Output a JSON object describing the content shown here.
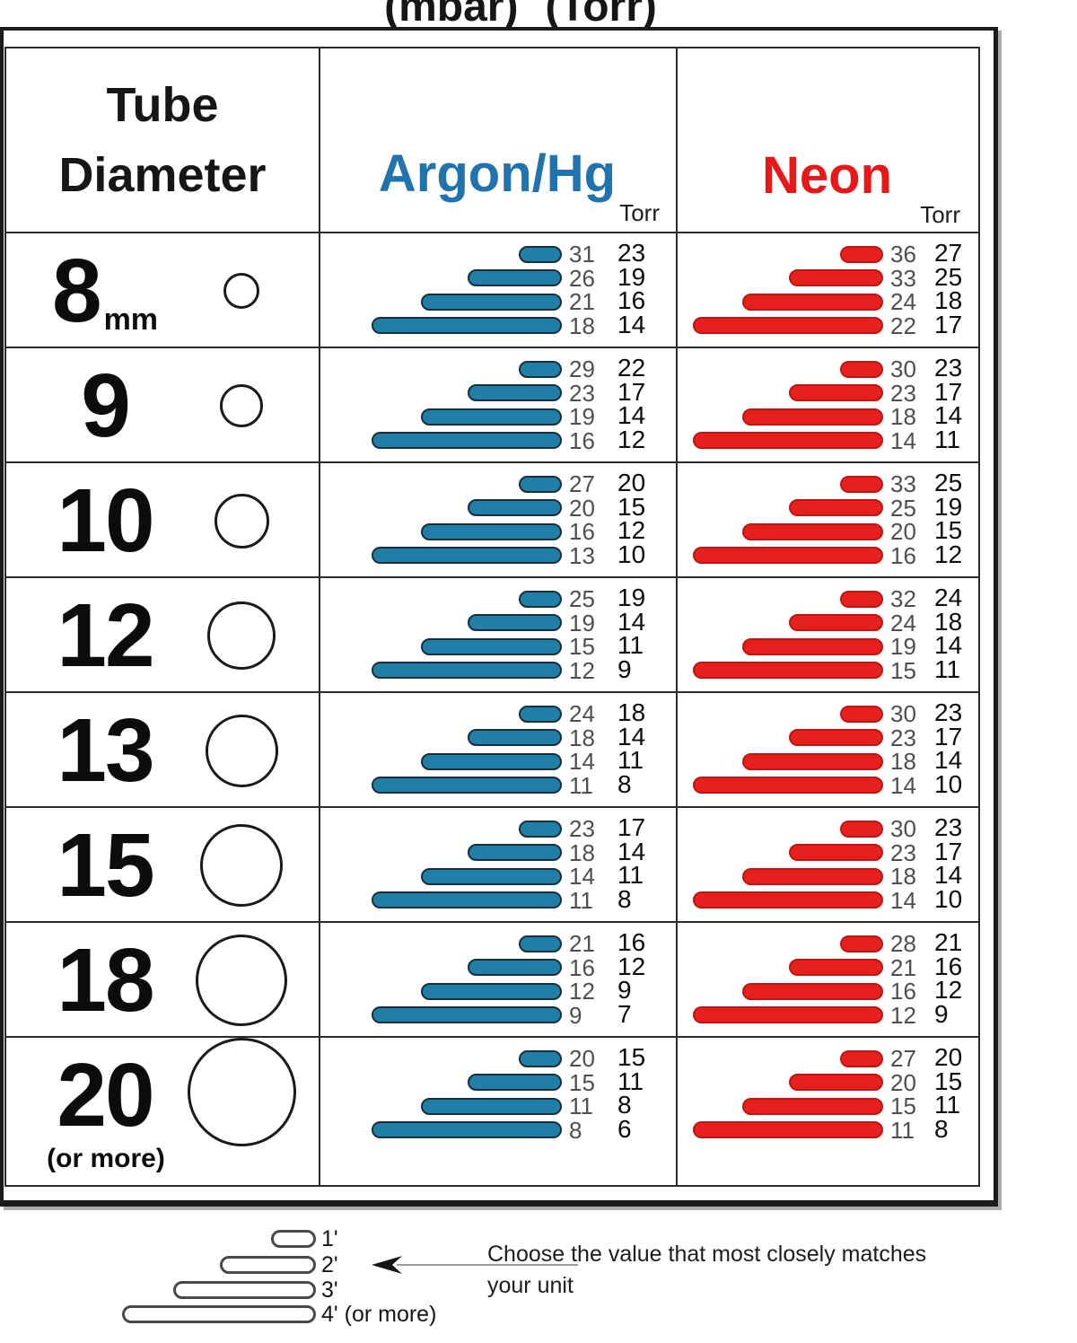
{
  "header": {
    "units_mbar": "(mbar)",
    "units_torr": "(Torr)",
    "col_diameter": "Tube Diameter",
    "col_argon": "Argon/Hg",
    "col_neon": "Neon",
    "torr_sublabel": "Torr"
  },
  "colors": {
    "argon_bar": "#1f7fa6",
    "argon_bar_outline": "#16303d",
    "argon_text": "#2173ad",
    "neon_bar": "#e6201c",
    "neon_bar_outline": "#c01513",
    "neon_text": "#e81818",
    "grid": "#2b2b2b",
    "mbar_number": "#4f4f4f",
    "torr_number": "#0d0d0d"
  },
  "chart_data": {
    "type": "table",
    "title": "(mbar)  (Torr)",
    "columns": [
      "Tube Diameter",
      "Argon/Hg",
      "Neon"
    ],
    "units": [
      "mbar",
      "Torr"
    ],
    "tube_lengths": [
      "1'",
      "2'",
      "3'",
      "4' (or more)"
    ],
    "rows": [
      {
        "diameter": "8",
        "unit": "mm",
        "argon": {
          "mbar": [
            31,
            26,
            21,
            18
          ],
          "torr": [
            23,
            19,
            16,
            14
          ]
        },
        "neon": {
          "mbar": [
            36,
            33,
            24,
            22
          ],
          "torr": [
            27,
            25,
            18,
            17
          ]
        }
      },
      {
        "diameter": "9",
        "argon": {
          "mbar": [
            29,
            23,
            19,
            16
          ],
          "torr": [
            22,
            17,
            14,
            12
          ]
        },
        "neon": {
          "mbar": [
            30,
            23,
            18,
            14
          ],
          "torr": [
            23,
            17,
            14,
            11
          ]
        }
      },
      {
        "diameter": "10",
        "argon": {
          "mbar": [
            27,
            20,
            16,
            13
          ],
          "torr": [
            20,
            15,
            12,
            10
          ]
        },
        "neon": {
          "mbar": [
            33,
            25,
            20,
            16
          ],
          "torr": [
            25,
            19,
            15,
            12
          ]
        }
      },
      {
        "diameter": "12",
        "argon": {
          "mbar": [
            25,
            19,
            15,
            12
          ],
          "torr": [
            19,
            14,
            11,
            9
          ]
        },
        "neon": {
          "mbar": [
            32,
            24,
            19,
            15
          ],
          "torr": [
            24,
            18,
            14,
            11
          ]
        }
      },
      {
        "diameter": "13",
        "argon": {
          "mbar": [
            24,
            18,
            14,
            11
          ],
          "torr": [
            18,
            14,
            11,
            8
          ]
        },
        "neon": {
          "mbar": [
            30,
            23,
            18,
            14
          ],
          "torr": [
            23,
            17,
            14,
            10
          ]
        }
      },
      {
        "diameter": "15",
        "argon": {
          "mbar": [
            23,
            18,
            14,
            11
          ],
          "torr": [
            17,
            14,
            11,
            8
          ]
        },
        "neon": {
          "mbar": [
            30,
            23,
            18,
            14
          ],
          "torr": [
            23,
            17,
            14,
            10
          ]
        }
      },
      {
        "diameter": "18",
        "argon": {
          "mbar": [
            21,
            16,
            12,
            9
          ],
          "torr": [
            16,
            12,
            9,
            7
          ]
        },
        "neon": {
          "mbar": [
            28,
            21,
            16,
            12
          ],
          "torr": [
            21,
            16,
            12,
            9
          ]
        }
      },
      {
        "diameter": "20",
        "suffix": "(or more)",
        "argon": {
          "mbar": [
            20,
            15,
            11,
            8
          ],
          "torr": [
            15,
            11,
            8,
            6
          ]
        },
        "neon": {
          "mbar": [
            27,
            20,
            15,
            11
          ],
          "torr": [
            20,
            15,
            11,
            8
          ]
        }
      }
    ]
  },
  "legend": {
    "lengths": [
      "1'",
      "2'",
      "3'",
      "4' (or more)"
    ],
    "note_line1": "Choose the value that most closely matches",
    "note_line2": "your unit"
  }
}
